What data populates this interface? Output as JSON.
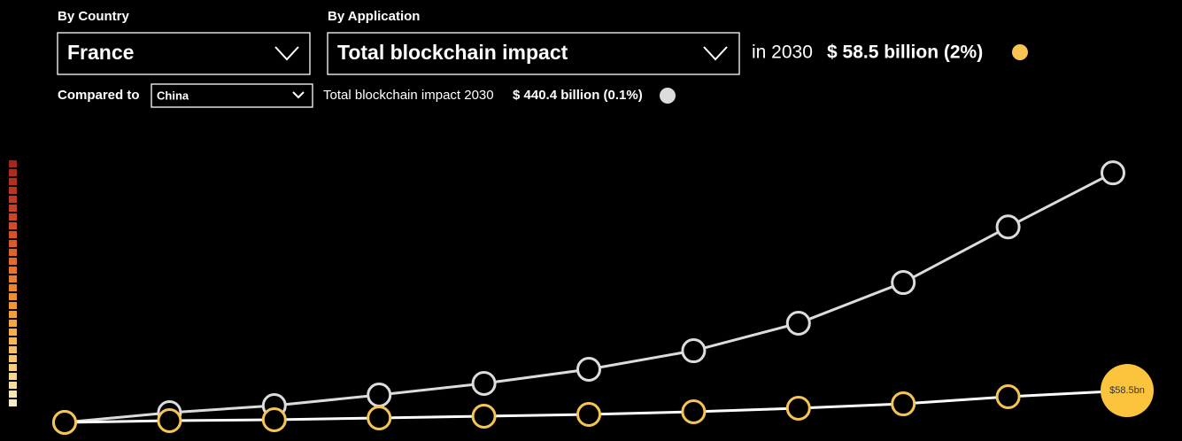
{
  "filters": {
    "country_label": "By Country",
    "application_label": "By Application",
    "application": "Total blockchain impact",
    "compared_label": "Compared to"
  },
  "headline": {
    "prefix": "in 2030",
    "amount": "$ 58.5 billion (2%)"
  },
  "comparison": {
    "text": "Total blockchain impact 2030",
    "amount": "$ 440.4 billion (0.1%)"
  },
  "chart_data": {
    "type": "line",
    "categories": [
      null,
      null,
      null,
      null,
      null,
      null,
      null,
      null,
      null,
      null,
      null
    ],
    "ylim": [
      0,
      450
    ],
    "series": [
      {
        "name": "China",
        "color": "#dcdcdc",
        "values": [
          2.6,
          19.7,
          32.1,
          50.8,
          71,
          95.8,
          128.4,
          176.6,
          248,
          345.5,
          440.4
        ]
      },
      {
        "name": "France",
        "color": "#f6c453",
        "values": [
          2.6,
          5.7,
          7.3,
          10.4,
          13.5,
          16.6,
          21.3,
          27.5,
          35.2,
          47.7,
          58.5
        ],
        "value_labels": [
          null,
          null,
          null,
          null,
          null,
          null,
          null,
          null,
          null,
          null,
          "$58.5bn"
        ]
      }
    ]
  }
}
